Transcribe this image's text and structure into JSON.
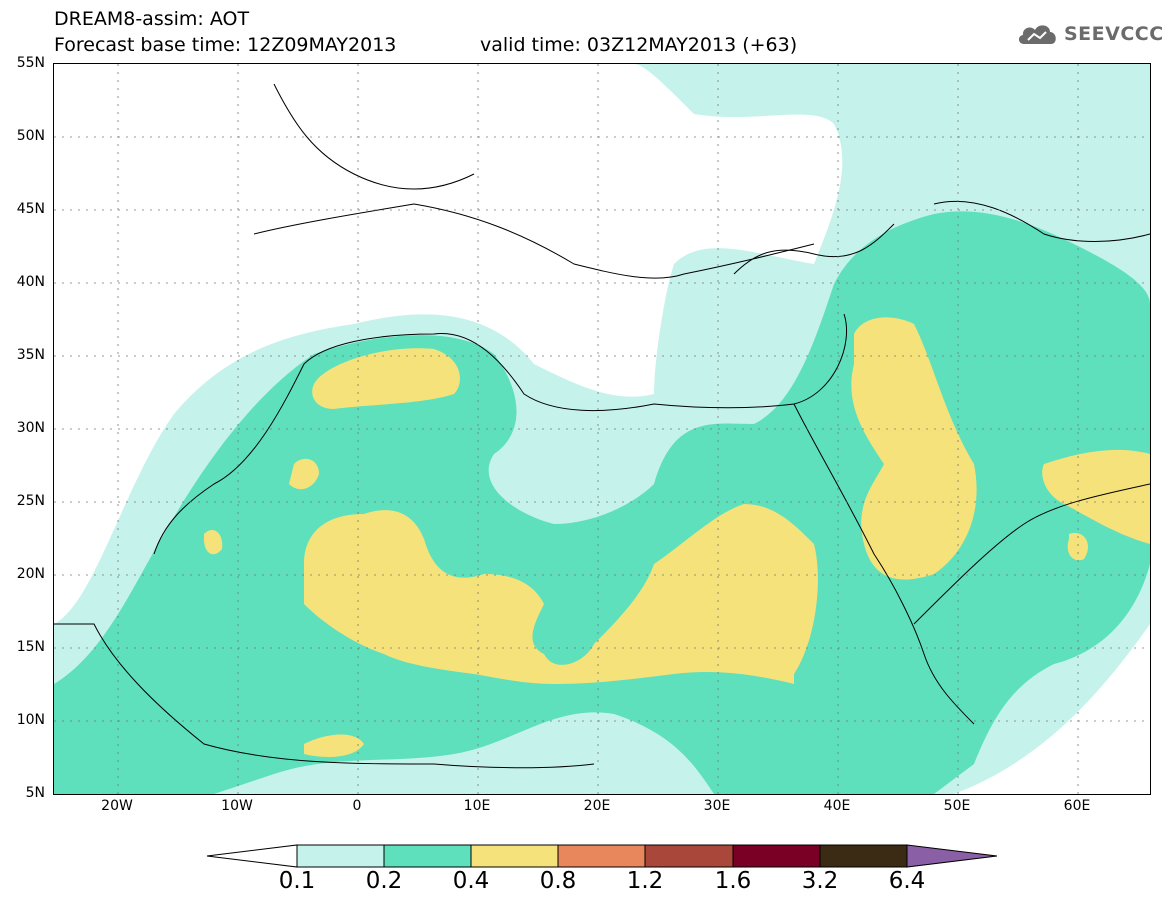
{
  "header": {
    "title_line1": "DREAM8-assim: AOT",
    "title_line2": "Forecast base time: 12Z09MAY2013",
    "valid_time": "valid time: 03Z12MAY2013 (+63)",
    "logo_text": "SEEVCCC",
    "logo_icon": "cloud-icon"
  },
  "axes": {
    "lat_labels": [
      "55N",
      "50N",
      "45N",
      "40N",
      "35N",
      "30N",
      "25N",
      "20N",
      "15N",
      "10N",
      "5N"
    ],
    "lon_labels": [
      "20W",
      "10W",
      "0",
      "10E",
      "20E",
      "30E",
      "40E",
      "50E",
      "60E"
    ]
  },
  "colorbar": {
    "labels": [
      "0.1",
      "0.2",
      "0.4",
      "0.8",
      "1.2",
      "1.6",
      "3.2",
      "6.4"
    ],
    "colors": [
      "#c6f2ec",
      "#5ee0bc",
      "#f5e27a",
      "#e8875c",
      "#a9473a",
      "#7a0025",
      "#3b2a14",
      "#8a5fa6"
    ]
  },
  "map_colors": {
    "light": "#c6f2ec",
    "mid": "#5ee0bc",
    "high": "#f5e27a"
  }
}
